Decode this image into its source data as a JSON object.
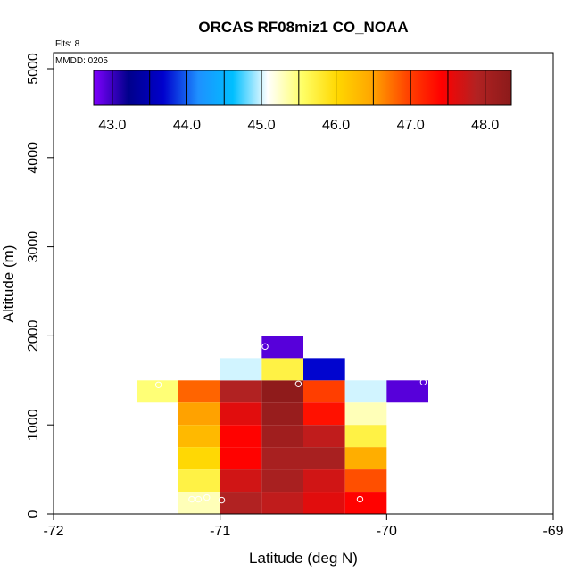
{
  "chart_data": {
    "type": "heatmap",
    "title": "ORCAS RF08miz1 CO_NOAA",
    "xlabel": "Latitude (deg N)",
    "ylabel": "Altitude (m)",
    "xlim": [
      -72,
      -69
    ],
    "ylim": [
      0,
      5200
    ],
    "x_ticks": [
      -72,
      -71,
      -70,
      -69
    ],
    "x_tick_labels": [
      "-72",
      "-71",
      "-70",
      "-69"
    ],
    "y_ticks": [
      0,
      1000,
      2000,
      3000,
      4000,
      5000
    ],
    "y_tick_labels": [
      "0",
      "1000",
      "2000",
      "3000",
      "4000",
      "5000"
    ],
    "annotations": {
      "flights": "Flts: 8",
      "mmdd": "MMDD: 0205"
    },
    "colorbar": {
      "range": [
        42.75,
        48.35
      ],
      "ticks": [
        43.0,
        44.0,
        45.0,
        46.0,
        47.0,
        48.0
      ],
      "tick_labels": [
        "43.0",
        "44.0",
        "45.0",
        "46.0",
        "47.0",
        "48.0"
      ],
      "stops": [
        "#8000ff",
        "#00008b",
        "#0000cd",
        "#1e90ff",
        "#00bfff",
        "#ffffff",
        "#ffff66",
        "#ffd700",
        "#ffa500",
        "#ff4500",
        "#ff0000",
        "#b22222",
        "#8b1a1a"
      ]
    },
    "cell_size": {
      "lat_deg": 0.25,
      "alt_m": 250
    },
    "cells": [
      {
        "lat": -71.375,
        "alt": 1375,
        "value": 45.5
      },
      {
        "lat": -71.125,
        "alt": 1375,
        "value": 46.8
      },
      {
        "lat": -70.875,
        "alt": 1375,
        "value": 47.9
      },
      {
        "lat": -70.625,
        "alt": 1375,
        "value": 48.3
      },
      {
        "lat": -70.375,
        "alt": 1375,
        "value": 47.0
      },
      {
        "lat": -70.125,
        "alt": 1375,
        "value": 45.0
      },
      {
        "lat": -69.875,
        "alt": 1375,
        "value": 42.9
      },
      {
        "lat": -70.875,
        "alt": 1625,
        "value": 45.0
      },
      {
        "lat": -70.625,
        "alt": 1625,
        "value": 45.7
      },
      {
        "lat": -70.375,
        "alt": 1625,
        "value": 43.7
      },
      {
        "lat": -70.625,
        "alt": 1875,
        "value": 42.9
      },
      {
        "lat": -71.125,
        "alt": 1125,
        "value": 46.5
      },
      {
        "lat": -70.875,
        "alt": 1125,
        "value": 47.6
      },
      {
        "lat": -70.625,
        "alt": 1125,
        "value": 48.2
      },
      {
        "lat": -70.375,
        "alt": 1125,
        "value": 47.3
      },
      {
        "lat": -70.125,
        "alt": 1125,
        "value": 45.3
      },
      {
        "lat": -71.125,
        "alt": 875,
        "value": 46.3
      },
      {
        "lat": -70.875,
        "alt": 875,
        "value": 47.4
      },
      {
        "lat": -70.625,
        "alt": 875,
        "value": 48.1
      },
      {
        "lat": -70.375,
        "alt": 875,
        "value": 47.8
      },
      {
        "lat": -70.125,
        "alt": 875,
        "value": 45.7
      },
      {
        "lat": -71.125,
        "alt": 625,
        "value": 46.0
      },
      {
        "lat": -70.875,
        "alt": 625,
        "value": 47.4
      },
      {
        "lat": -70.625,
        "alt": 625,
        "value": 48.0
      },
      {
        "lat": -70.375,
        "alt": 625,
        "value": 48.0
      },
      {
        "lat": -70.125,
        "alt": 625,
        "value": 46.4
      },
      {
        "lat": -71.125,
        "alt": 375,
        "value": 45.7
      },
      {
        "lat": -70.875,
        "alt": 375,
        "value": 47.7
      },
      {
        "lat": -70.625,
        "alt": 375,
        "value": 48.0
      },
      {
        "lat": -70.375,
        "alt": 375,
        "value": 47.7
      },
      {
        "lat": -70.125,
        "alt": 375,
        "value": 46.9
      },
      {
        "lat": -71.125,
        "alt": 125,
        "value": 45.3
      },
      {
        "lat": -70.875,
        "alt": 125,
        "value": 47.9
      },
      {
        "lat": -70.625,
        "alt": 125,
        "value": 47.8
      },
      {
        "lat": -70.375,
        "alt": 125,
        "value": 47.6
      },
      {
        "lat": -70.125,
        "alt": 125,
        "value": 47.4
      }
    ],
    "points": [
      {
        "lat": -71.17,
        "alt": 165
      },
      {
        "lat": -71.13,
        "alt": 165
      },
      {
        "lat": -71.08,
        "alt": 185
      },
      {
        "lat": -70.99,
        "alt": 155
      },
      {
        "lat": -70.16,
        "alt": 165
      },
      {
        "lat": -71.37,
        "alt": 1450
      },
      {
        "lat": -70.53,
        "alt": 1460
      },
      {
        "lat": -69.78,
        "alt": 1480
      },
      {
        "lat": -70.73,
        "alt": 1880
      }
    ]
  }
}
